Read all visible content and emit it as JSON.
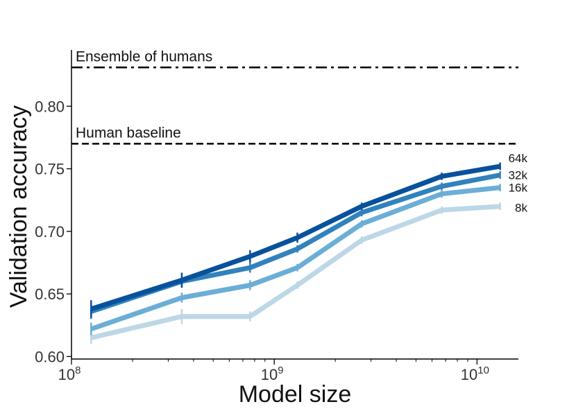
{
  "chart_data": {
    "type": "line",
    "title": "",
    "xlabel": "Model size",
    "ylabel": "Validation accuracy",
    "xscale": "log",
    "xlim": [
      100000000.0,
      16000000000.0
    ],
    "ylim": [
      0.598,
      0.845
    ],
    "x_ticks": [
      {
        "value": 100000000.0,
        "base": "10",
        "exp": "8"
      },
      {
        "value": 1000000000.0,
        "base": "10",
        "exp": "9"
      },
      {
        "value": 10000000000.0,
        "base": "10",
        "exp": "10"
      }
    ],
    "y_ticks": [
      {
        "value": 0.6,
        "label": "0.60"
      },
      {
        "value": 0.65,
        "label": "0.65"
      },
      {
        "value": 0.7,
        "label": "0.70"
      },
      {
        "value": 0.75,
        "label": "0.75"
      },
      {
        "value": 0.8,
        "label": "0.80"
      }
    ],
    "reference_lines": [
      {
        "name": "Ensemble of humans",
        "y": 0.831,
        "style": "dash-dot",
        "color": "#000000"
      },
      {
        "name": "Human baseline",
        "y": 0.77,
        "style": "dashed",
        "color": "#000000"
      }
    ],
    "x": [
      125000000.0,
      350000000.0,
      760000000.0,
      1300000000.0,
      2700000000.0,
      6700000000.0,
      13000000000.0
    ],
    "series": [
      {
        "name": "8k",
        "color": "#bdd7e7",
        "values": [
          0.615,
          0.632,
          0.632,
          0.657,
          0.693,
          0.717,
          0.72
        ],
        "errors": [
          0.005,
          0.006,
          0.004,
          0.003,
          0.003,
          0.003,
          0.003
        ]
      },
      {
        "name": "16k",
        "color": "#6baed6",
        "values": [
          0.622,
          0.647,
          0.657,
          0.671,
          0.706,
          0.73,
          0.735
        ],
        "errors": [
          0.005,
          0.004,
          0.004,
          0.003,
          0.003,
          0.003,
          0.003
        ]
      },
      {
        "name": "32k",
        "color": "#3182bd",
        "values": [
          0.636,
          0.66,
          0.671,
          0.686,
          0.715,
          0.736,
          0.745
        ],
        "errors": [
          0.006,
          0.005,
          0.004,
          0.003,
          0.003,
          0.003,
          0.003
        ]
      },
      {
        "name": "64k",
        "color": "#08519c",
        "values": [
          0.638,
          0.661,
          0.68,
          0.695,
          0.72,
          0.744,
          0.752
        ],
        "errors": [
          0.007,
          0.006,
          0.005,
          0.004,
          0.003,
          0.003,
          0.003
        ]
      }
    ]
  }
}
